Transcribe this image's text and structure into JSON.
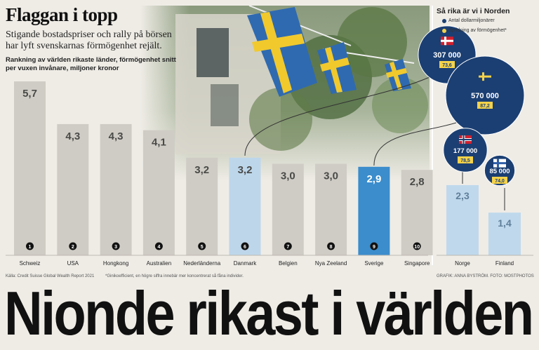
{
  "title": "Flaggan i topp",
  "subtitle": "Stigande bostadspriser och rally på börsen har lyft svenskarnas förmögenhet rejält.",
  "description": "Rankning av världen rikaste länder, förmögenhet snitt per vuxen invånare, miljoner kronor",
  "nordic": {
    "title": "Så rika är vi i Norden",
    "legend_millionaires": "Antal dollarmiljonärer",
    "legend_spread": "Spridning av förmögenhet*"
  },
  "source": "Källa: Credit Suisse Global Wealth Report 2021",
  "footnote": "*Ginikoefficient, en högre siffra innebär mer koncentrerat så fåna individer.",
  "credit": "GRAFIK: ANNA BYSTRÖM. FOTO: MOSTPHOTOS",
  "headline": "Nionde rikast i världen",
  "colors": {
    "bar_default": "#cfccc5",
    "bar_danmark": "#bdd6ea",
    "bar_sverige": "#3b8dcc",
    "bar_nordic": "#bfd8ec",
    "circle": "#1b3f73",
    "badge": "#f4d24a",
    "rank_badge": "#111111"
  },
  "chart_data": [
    {
      "type": "bar",
      "categories": [
        "Schweiz",
        "USA",
        "Hongkong",
        "Australien",
        "Nederländerna",
        "Danmark",
        "Belgien",
        "Nya Zeeland",
        "Sverige",
        "Singapore"
      ],
      "values": [
        5.7,
        4.3,
        4.3,
        4.1,
        3.2,
        3.2,
        3.0,
        3.0,
        2.9,
        2.8
      ],
      "value_labels": [
        "5,7",
        "4,3",
        "4,3",
        "4,1",
        "3,2",
        "3,2",
        "3,0",
        "3,0",
        "2,9",
        "2,8"
      ],
      "ranks": [
        "1",
        "2",
        "3",
        "4",
        "5",
        "6",
        "7",
        "8",
        "9",
        "10"
      ],
      "highlight": {
        "Danmark": "light-blue",
        "Sverige": "blue"
      },
      "ylim": [
        0,
        6
      ]
    },
    {
      "type": "bar",
      "categories": [
        "Norge",
        "Finland"
      ],
      "values": [
        2.3,
        1.4
      ],
      "value_labels": [
        "2,3",
        "1,4"
      ],
      "ylim": [
        0,
        6
      ]
    },
    {
      "type": "scatter",
      "series": [
        {
          "name": "Antal dollarmiljonärer",
          "values": [
            307000,
            570000,
            177000,
            85000
          ],
          "labels": [
            "307 000",
            "570 000",
            "177 000",
            "85 000"
          ]
        },
        {
          "name": "Spridning av förmögenhet*",
          "values": [
            73.6,
            87.2,
            78.5,
            74.0
          ],
          "labels": [
            "73,6",
            "87,2",
            "78,5",
            "74,0"
          ]
        }
      ],
      "categories": [
        "Danmark",
        "Sverige",
        "Norge",
        "Finland"
      ],
      "flag_icons": [
        "danish-flag-icon",
        "swedish-flag-icon",
        "norwegian-flag-icon",
        "finnish-flag-icon"
      ]
    }
  ]
}
